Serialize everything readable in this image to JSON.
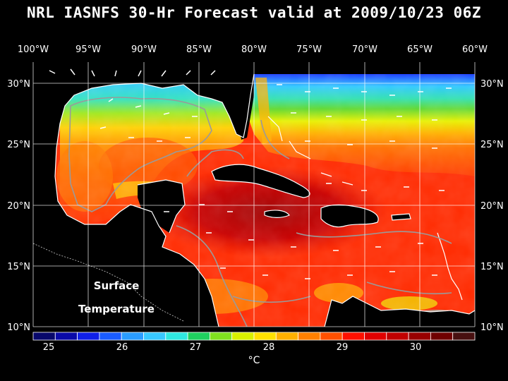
{
  "title": "NRL IASNFS  30-Hr Forecast valid at 2009/10/23 06Z",
  "lon_labels": [
    "100°W",
    "95°W",
    "90°W",
    "85°W",
    "80°W",
    "75°W",
    "70°W",
    "65°W",
    "60°W"
  ],
  "lat_labels": [
    "30°N",
    "25°N",
    "20°N",
    "15°N",
    "10°N"
  ],
  "annotation": {
    "line1": "Surface",
    "line2": "Temperature"
  },
  "colorbar": {
    "ticks": [
      "25",
      "26",
      "27",
      "28",
      "29",
      "30"
    ],
    "unit": "°C",
    "colors": [
      "#08086b",
      "#0a0aa8",
      "#1020e8",
      "#1a5cff",
      "#2a9cff",
      "#38c8ff",
      "#30e8e0",
      "#20d060",
      "#80e020",
      "#d8f000",
      "#ffe000",
      "#ffb000",
      "#ff8000",
      "#ff5000",
      "#ff1000",
      "#e00000",
      "#c00000",
      "#980000",
      "#700000",
      "#481010"
    ]
  },
  "colors": {
    "background": "#000000",
    "land": "#000000",
    "coast": "#ffffff",
    "grid": "#ffffff",
    "bathymetry": "#9a9a9a"
  }
}
